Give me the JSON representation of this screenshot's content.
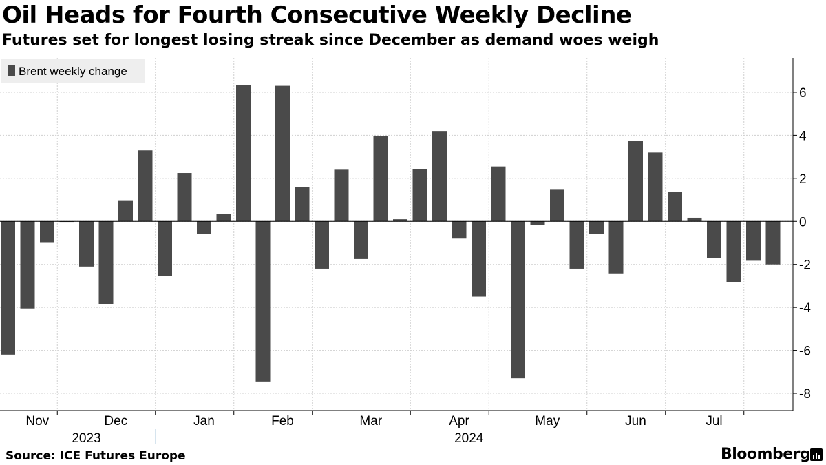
{
  "header": {
    "title": "Oil Heads for Fourth Consecutive Weekly Decline",
    "subtitle": "Futures set for longest losing streak since December as demand woes weigh"
  },
  "footer": {
    "source": "Source: ICE Futures Europe",
    "brand": "Bloomberg"
  },
  "colors": {
    "bar": "#4a4a4a",
    "grid": "#cfcfcf",
    "axis": "#000000",
    "legend_bg": "#eeeeee"
  },
  "chart_data": {
    "type": "bar",
    "title": "Oil Heads for Fourth Consecutive Weekly Decline",
    "xlabel": "",
    "ylabel": "",
    "ylim": [
      -8.8,
      7.6
    ],
    "yticks": [
      6,
      4,
      2,
      0,
      -2,
      -4,
      -6,
      -8
    ],
    "grid": true,
    "legend_position": "top-left",
    "series": [
      {
        "name": "Brent weekly change",
        "values": [
          -6.2,
          -4.05,
          -1.0,
          -0.02,
          -2.1,
          -3.85,
          0.95,
          3.3,
          -2.55,
          2.25,
          -0.6,
          0.35,
          6.35,
          -7.45,
          6.3,
          1.6,
          -2.2,
          2.4,
          -1.75,
          3.97,
          0.1,
          2.42,
          4.2,
          -0.8,
          -3.5,
          2.55,
          -7.3,
          -0.18,
          1.47,
          -2.2,
          -0.6,
          -2.45,
          3.75,
          3.2,
          1.38,
          0.17,
          -1.72,
          -2.83,
          -1.83,
          -2.0
        ]
      }
    ],
    "month_labels": [
      "Nov",
      "Dec",
      "Jan",
      "Feb",
      "Mar",
      "Apr",
      "May",
      "Jun",
      "Jul"
    ],
    "month_label_week_pos": [
      1.5,
      5.5,
      10,
      14,
      18.5,
      23,
      27.5,
      32,
      36
    ],
    "month_boundary_week_pos": [
      3,
      8,
      12,
      16,
      21,
      25,
      30,
      34,
      38
    ],
    "year_labels": [
      "2023",
      "2024"
    ],
    "year_label_week_pos": [
      4,
      23.5
    ],
    "year_boundary_week_pos": 8
  }
}
